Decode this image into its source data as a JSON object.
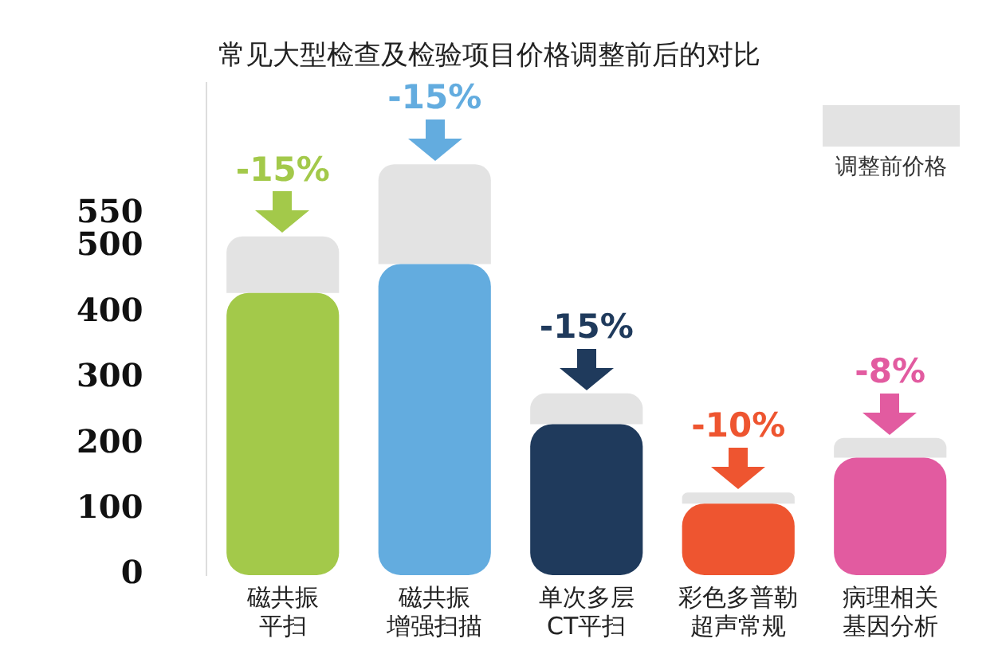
{
  "chart_data": {
    "type": "bar",
    "title": "常见大型检查及检验项目价格调整前后的对比",
    "categories": [
      "磁共振平扫",
      "磁共振增强扫描",
      "单次多层CT平扫",
      "彩色多普勒超声常规",
      "病理相关基因分析"
    ],
    "stacked": true,
    "series": [
      {
        "colors": [
          "#a3c94a",
          "#63acdf",
          "#1f3a5c",
          "#ee5530",
          "#e25ba0"
        ],
        "values": [
          430,
          474,
          230,
          109,
          179
        ]
      },
      {
        "name": "调整前价格",
        "color": "#e3e3e3",
        "values": [
          86,
          152,
          47,
          17,
          30
        ]
      }
    ],
    "ylim": [
      0,
      750
    ],
    "yticks": [
      0,
      100,
      200,
      300,
      400,
      500,
      550
    ],
    "grid": false,
    "legend": "top right",
    "annotations": [
      {
        "text": "-15%",
        "x": "磁共振平扫",
        "y": 516
      },
      {
        "text": "-15%",
        "x": "磁共振增强扫描",
        "y": 626
      },
      {
        "text": "-15%",
        "x": "单次多层CT平扫",
        "y": 277
      },
      {
        "text": "-10%",
        "x": "彩色多普勒超声常规",
        "y": 126
      },
      {
        "text": "-8%",
        "x": "病理相关基因分析",
        "y": 209
      }
    ]
  }
}
